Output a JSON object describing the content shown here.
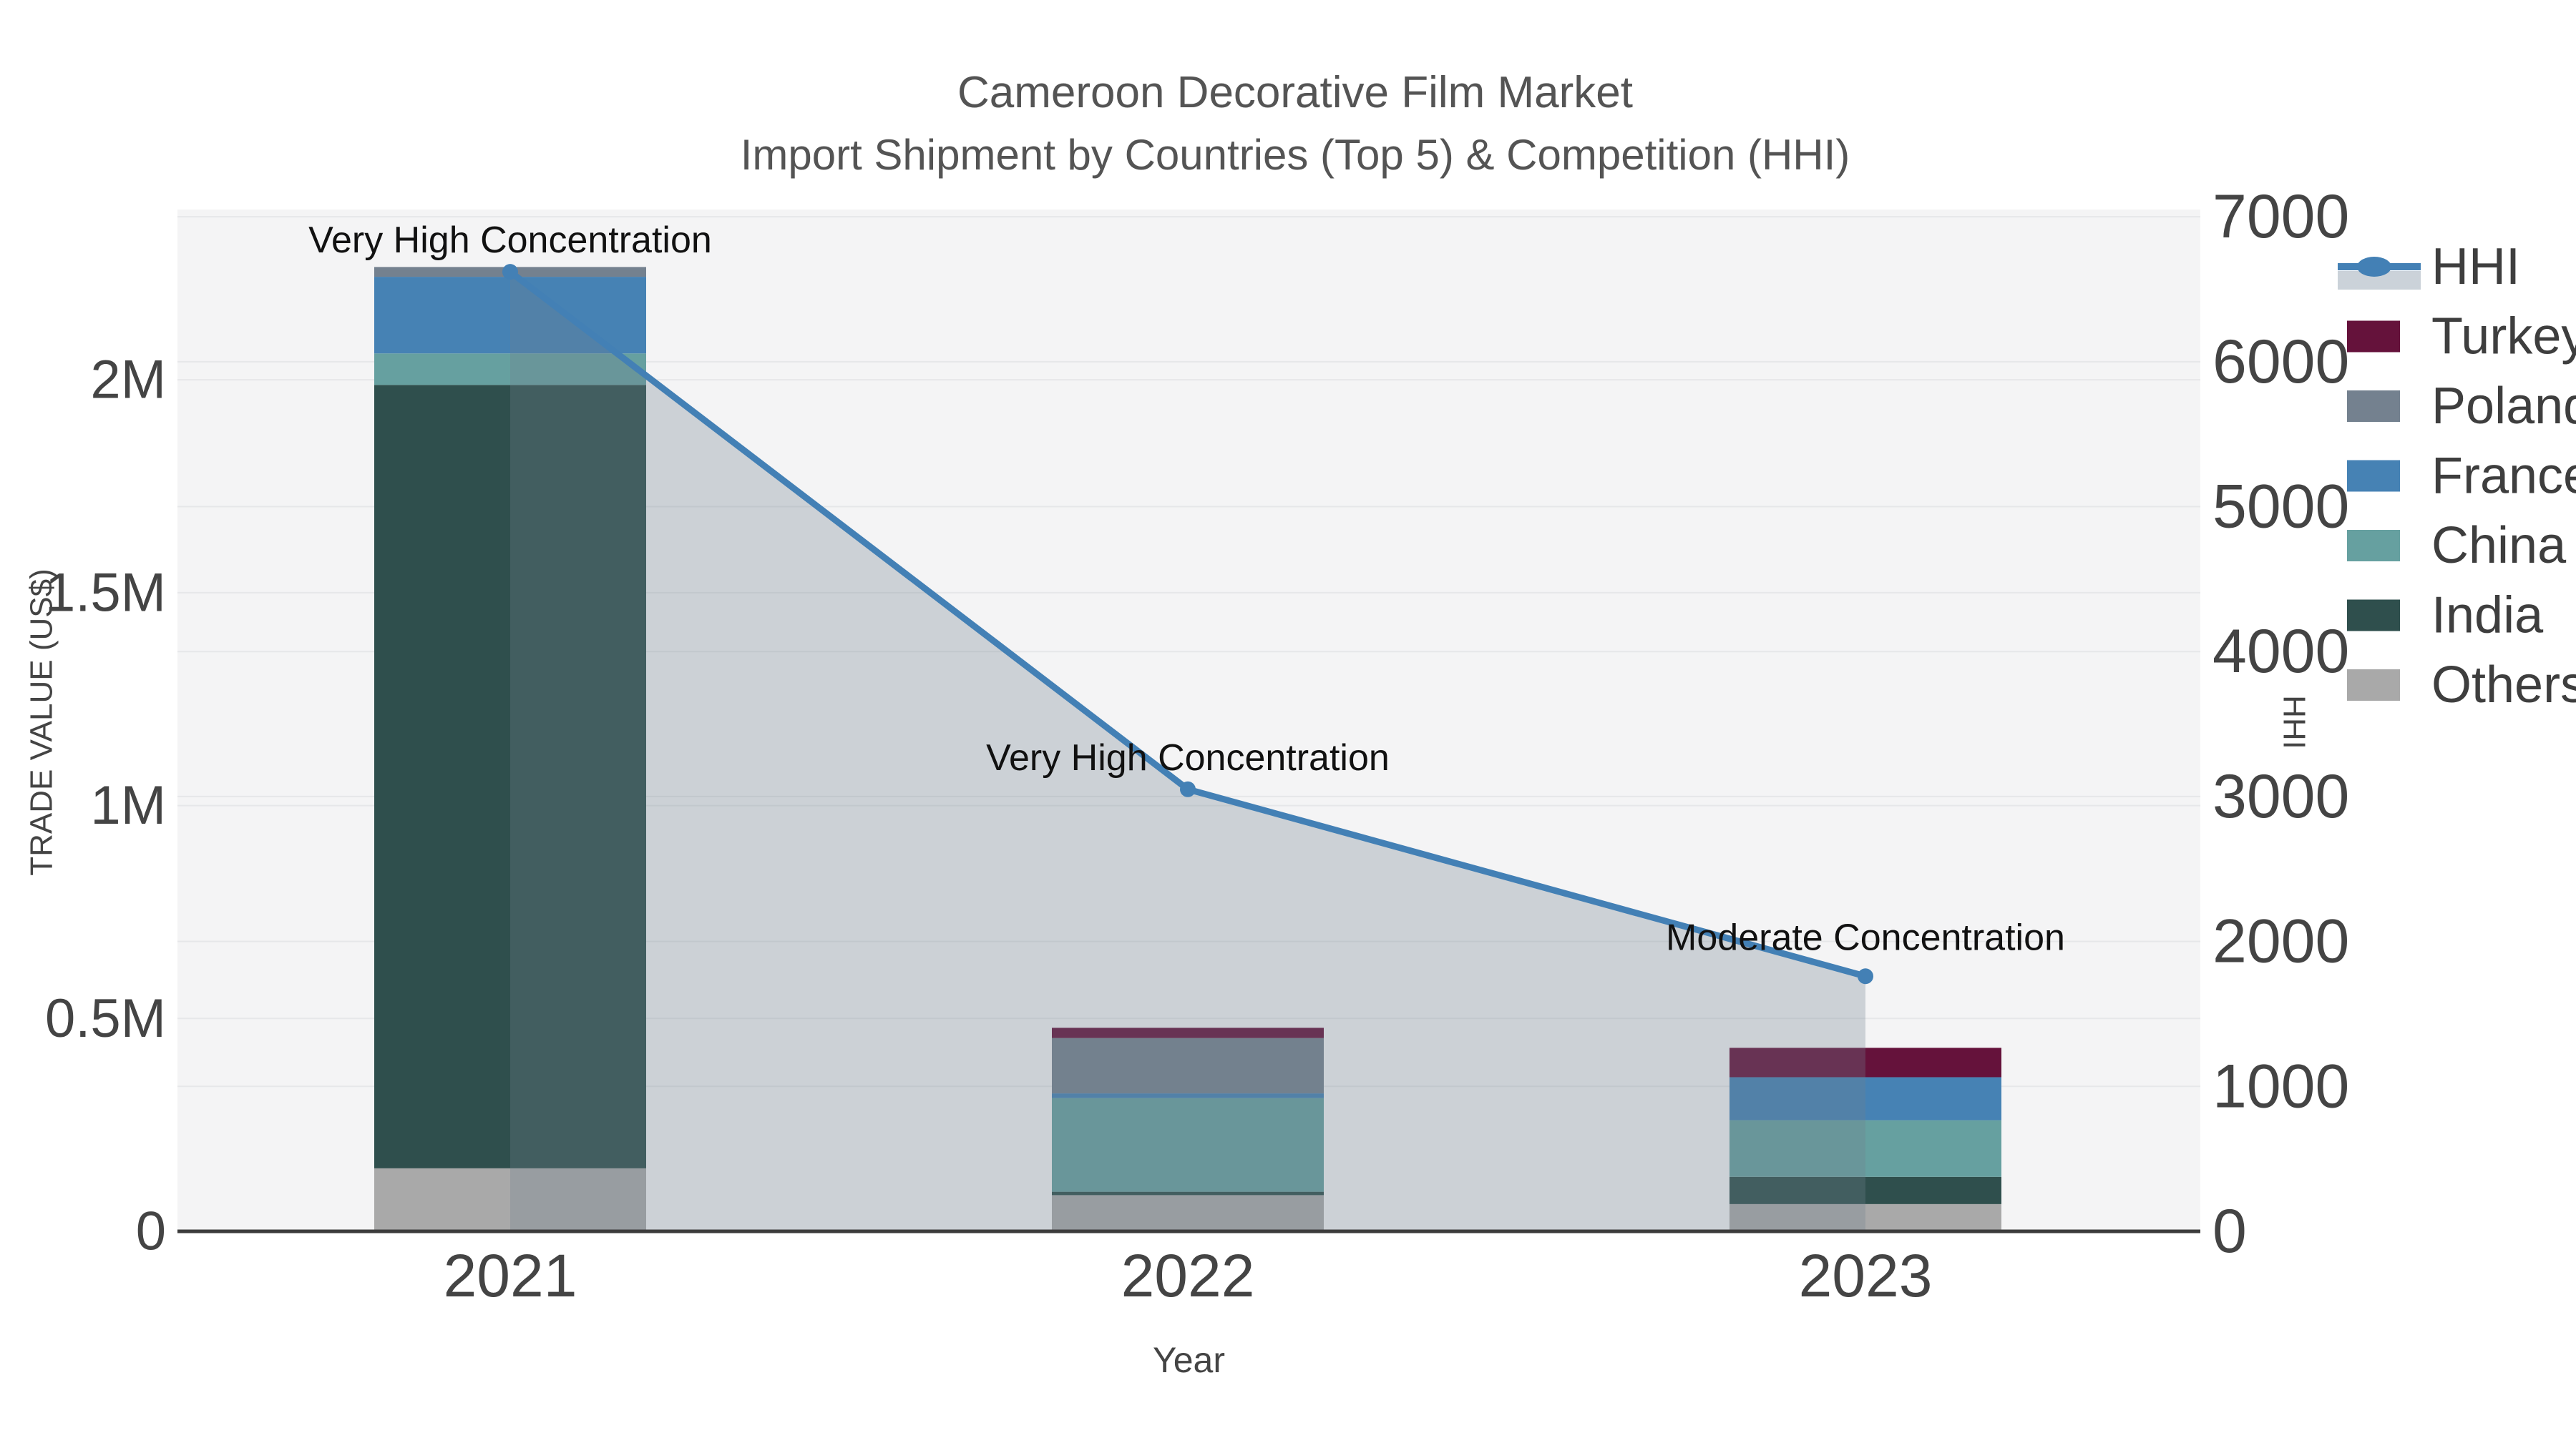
{
  "figure": {
    "title_line1": "Cameroon Decorative Film Market",
    "title_line2": "Import Shipment by Countries (Top 5) & Competition (HHI)"
  },
  "chart_data": {
    "type": "bar+line",
    "categories": [
      "2021",
      "2022",
      "2023"
    ],
    "xlabel": "Year",
    "ylabel_left": "TRADE VALUE (US$)",
    "ylabel_right": "HHI",
    "yleft_range": [
      0,
      2400000
    ],
    "yright_range": [
      0,
      7050
    ],
    "yleft_tick_values": [
      0,
      500000,
      1000000,
      1500000,
      2000000
    ],
    "yleft_tick_labels": [
      "0",
      "0.5M",
      "1M",
      "1.5M",
      "2M"
    ],
    "yright_tick_values": [
      0,
      1000,
      2000,
      3000,
      4000,
      5000,
      6000,
      7000
    ],
    "yright_tick_labels": [
      "0",
      "1000",
      "2000",
      "3000",
      "4000",
      "5000",
      "6000",
      "7000"
    ],
    "grid": true,
    "legend_position": "right",
    "bar_series_bottom_to_top": [
      {
        "name": "Others",
        "color": "#A9A9A9",
        "values": [
          148000,
          85000,
          64000
        ]
      },
      {
        "name": "India",
        "color": "#2F4F4D",
        "values": [
          1840000,
          8000,
          64000
        ]
      },
      {
        "name": "China",
        "color": "#66A0A0",
        "values": [
          74000,
          220000,
          133000
        ]
      },
      {
        "name": "France",
        "color": "#4682B4",
        "values": [
          180000,
          11000,
          101000
        ]
      },
      {
        "name": "Poland",
        "color": "#74818F",
        "values": [
          23000,
          130000,
          0
        ]
      },
      {
        "name": "Turkey",
        "color": "#65123B",
        "values": [
          0,
          24000,
          69000
        ]
      }
    ],
    "line_series": {
      "name": "HHI",
      "color": "#4380B5",
      "area_fill": "rgba(112,128,144,0.30)",
      "values": [
        6620,
        3050,
        1760
      ]
    },
    "annotations": [
      {
        "year": "2021",
        "text": "Very High Concentration"
      },
      {
        "year": "2022",
        "text": "Very High Concentration"
      },
      {
        "year": "2023",
        "text": "Moderate Concentration"
      }
    ],
    "legend_order": [
      "HHI",
      "Turkey",
      "Poland",
      "France",
      "China",
      "India",
      "Others"
    ],
    "colors": {
      "plot_background": "#F4F4F5",
      "gridline": "#E6E7E9",
      "axis_line": "#3C3C3C",
      "tick_label": "#444444",
      "title": "#545454",
      "annotation": "#111111",
      "legend_text": "#3E3E3E",
      "hhi_legend_band": "#CBD2D9"
    }
  }
}
